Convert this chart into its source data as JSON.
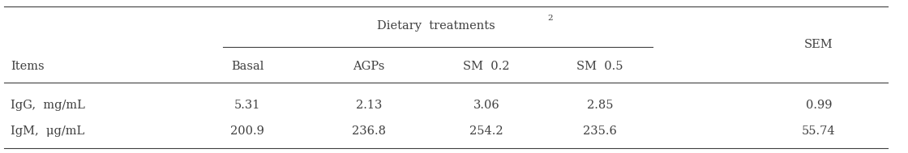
{
  "header_group_label": "Dietary  treatments",
  "header_group_superscript": "2",
  "col_headers": [
    "Basal",
    "AGPs",
    "SM  0.2",
    "SM  0.5"
  ],
  "sem_label": "SEM",
  "row_label_header": "Items",
  "rows": [
    {
      "label": "IgG,  mg/mL",
      "values": [
        "5.31",
        "2.13",
        "3.06",
        "2.85"
      ],
      "sem": "0.99"
    },
    {
      "label": "IgM,  μg/mL",
      "values": [
        "200.9",
        "236.8",
        "254.2",
        "235.6"
      ],
      "sem": "55.74"
    }
  ],
  "font_family": "serif",
  "font_size": 10.5,
  "text_color": "#404040",
  "line_color": "#404040",
  "figwidth": 11.2,
  "figheight": 1.89,
  "dpi": 100
}
